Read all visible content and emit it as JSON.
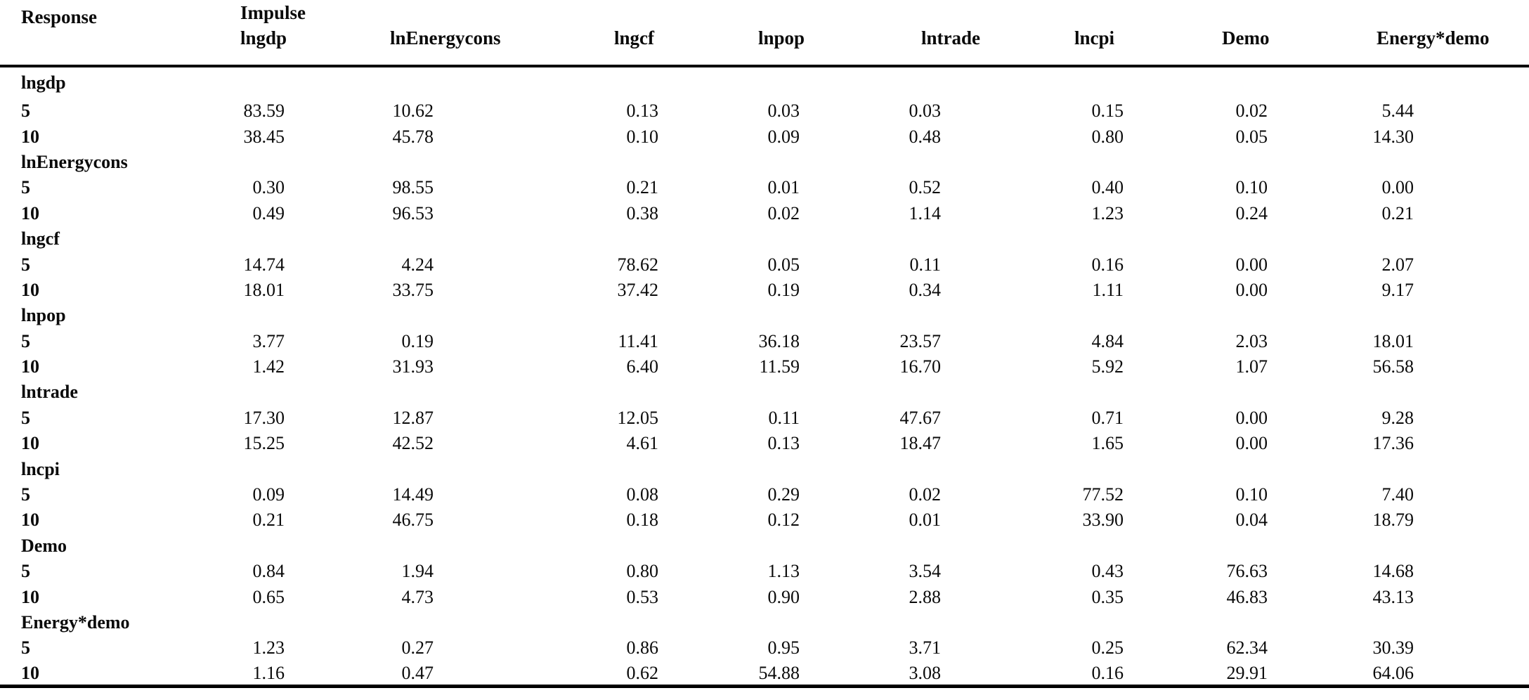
{
  "page": {
    "background_color": "#ffffff",
    "text_color": "#0a0a0a",
    "rule_color": "#000000"
  },
  "table": {
    "header": {
      "response": "Response",
      "impulse": "Impulse",
      "impulse_columns": [
        "lngdp",
        "lnEnergycons",
        "lngcf",
        "lnpop",
        "lntrade",
        "lncpi",
        "Demo",
        "Energy*demo"
      ]
    },
    "groups": [
      {
        "label": "lngdp",
        "rows": [
          {
            "horizon": "5",
            "values": [
              "83.59",
              "10.62",
              "0.13",
              "0.03",
              "0.03",
              "0.15",
              "0.02",
              "5.44"
            ]
          },
          {
            "horizon": "10",
            "values": [
              "38.45",
              "45.78",
              "0.10",
              "0.09",
              "0.48",
              "0.80",
              "0.05",
              "14.30"
            ]
          }
        ]
      },
      {
        "label": "lnEnergycons",
        "rows": [
          {
            "horizon": "5",
            "values": [
              "0.30",
              "98.55",
              "0.21",
              "0.01",
              "0.52",
              "0.40",
              "0.10",
              "0.00"
            ]
          },
          {
            "horizon": "10",
            "values": [
              "0.49",
              "96.53",
              "0.38",
              "0.02",
              "1.14",
              "1.23",
              "0.24",
              "0.21"
            ]
          }
        ]
      },
      {
        "label": "lngcf",
        "rows": [
          {
            "horizon": "5",
            "values": [
              "14.74",
              "4.24",
              "78.62",
              "0.05",
              "0.11",
              "0.16",
              "0.00",
              "2.07"
            ]
          },
          {
            "horizon": "10",
            "values": [
              "18.01",
              "33.75",
              "37.42",
              "0.19",
              "0.34",
              "1.11",
              "0.00",
              "9.17"
            ]
          }
        ]
      },
      {
        "label": "lnpop",
        "rows": [
          {
            "horizon": "5",
            "values": [
              "3.77",
              "0.19",
              "11.41",
              "36.18",
              "23.57",
              "4.84",
              "2.03",
              "18.01"
            ]
          },
          {
            "horizon": "10",
            "values": [
              "1.42",
              "31.93",
              "6.40",
              "11.59",
              "16.70",
              "5.92",
              "1.07",
              "56.58"
            ]
          }
        ]
      },
      {
        "label": "lntrade",
        "rows": [
          {
            "horizon": "5",
            "values": [
              "17.30",
              "12.87",
              "12.05",
              "0.11",
              "47.67",
              "0.71",
              "0.00",
              "9.28"
            ]
          },
          {
            "horizon": "10",
            "values": [
              "15.25",
              "42.52",
              "4.61",
              "0.13",
              "18.47",
              "1.65",
              "0.00",
              "17.36"
            ]
          }
        ]
      },
      {
        "label": "lncpi",
        "rows": [
          {
            "horizon": "5",
            "values": [
              "0.09",
              "14.49",
              "0.08",
              "0.29",
              "0.02",
              "77.52",
              "0.10",
              "7.40"
            ]
          },
          {
            "horizon": "10",
            "values": [
              "0.21",
              "46.75",
              "0.18",
              "0.12",
              "0.01",
              "33.90",
              "0.04",
              "18.79"
            ]
          }
        ]
      },
      {
        "label": "Demo",
        "rows": [
          {
            "horizon": "5",
            "values": [
              "0.84",
              "1.94",
              "0.80",
              "1.13",
              "3.54",
              "0.43",
              "76.63",
              "14.68"
            ]
          },
          {
            "horizon": "10",
            "values": [
              "0.65",
              "4.73",
              "0.53",
              "0.90",
              "2.88",
              "0.35",
              "46.83",
              "43.13"
            ]
          }
        ]
      },
      {
        "label": "Energy*demo",
        "rows": [
          {
            "horizon": "5",
            "values": [
              "1.23",
              "0.27",
              "0.86",
              "0.95",
              "3.71",
              "0.25",
              "62.34",
              "30.39"
            ]
          },
          {
            "horizon": "10",
            "values": [
              "1.16",
              "0.47",
              "0.62",
              "54.88",
              "3.08",
              "0.16",
              "29.91",
              "64.06"
            ]
          }
        ]
      }
    ]
  }
}
